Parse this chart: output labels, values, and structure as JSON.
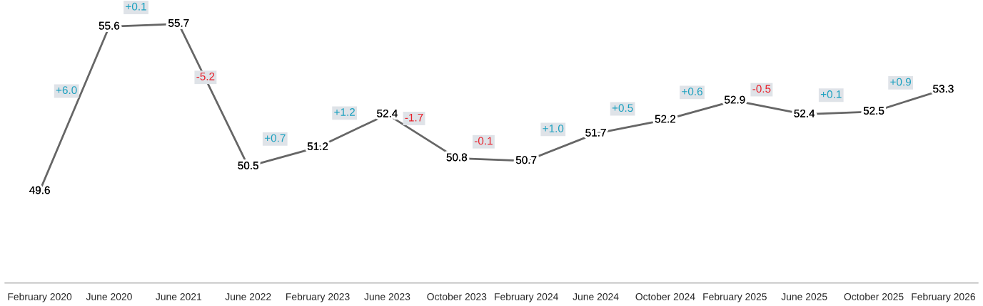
{
  "chart_data": {
    "type": "line",
    "categories": [
      "February 2020",
      "June 2020",
      "June 2021",
      "June 2022",
      "February 2023",
      "June 2023",
      "October 2023",
      "February 2024",
      "June 2024",
      "October 2024",
      "February 2025",
      "June 2025",
      "October 2025",
      "February 2026"
    ],
    "series": [
      {
        "color": "#666666",
        "values": [
          49.6,
          55.6,
          55.7,
          50.5,
          51.2,
          52.4,
          50.8,
          50.7,
          51.7,
          52.2,
          52.9,
          52.4,
          52.5,
          53.3
        ]
      }
    ],
    "data_labels": true,
    "annotations": [
      "+6.0",
      "+0.1",
      "-5.2",
      "+0.7",
      "+1.2",
      "-1.7",
      "-0.1",
      "+1.0",
      "+0.5",
      "+0.6",
      "-0.5",
      "+0.1",
      "+0.9"
    ],
    "grid": false,
    "legend": false,
    "marker": "none",
    "line_style": "solid"
  }
}
